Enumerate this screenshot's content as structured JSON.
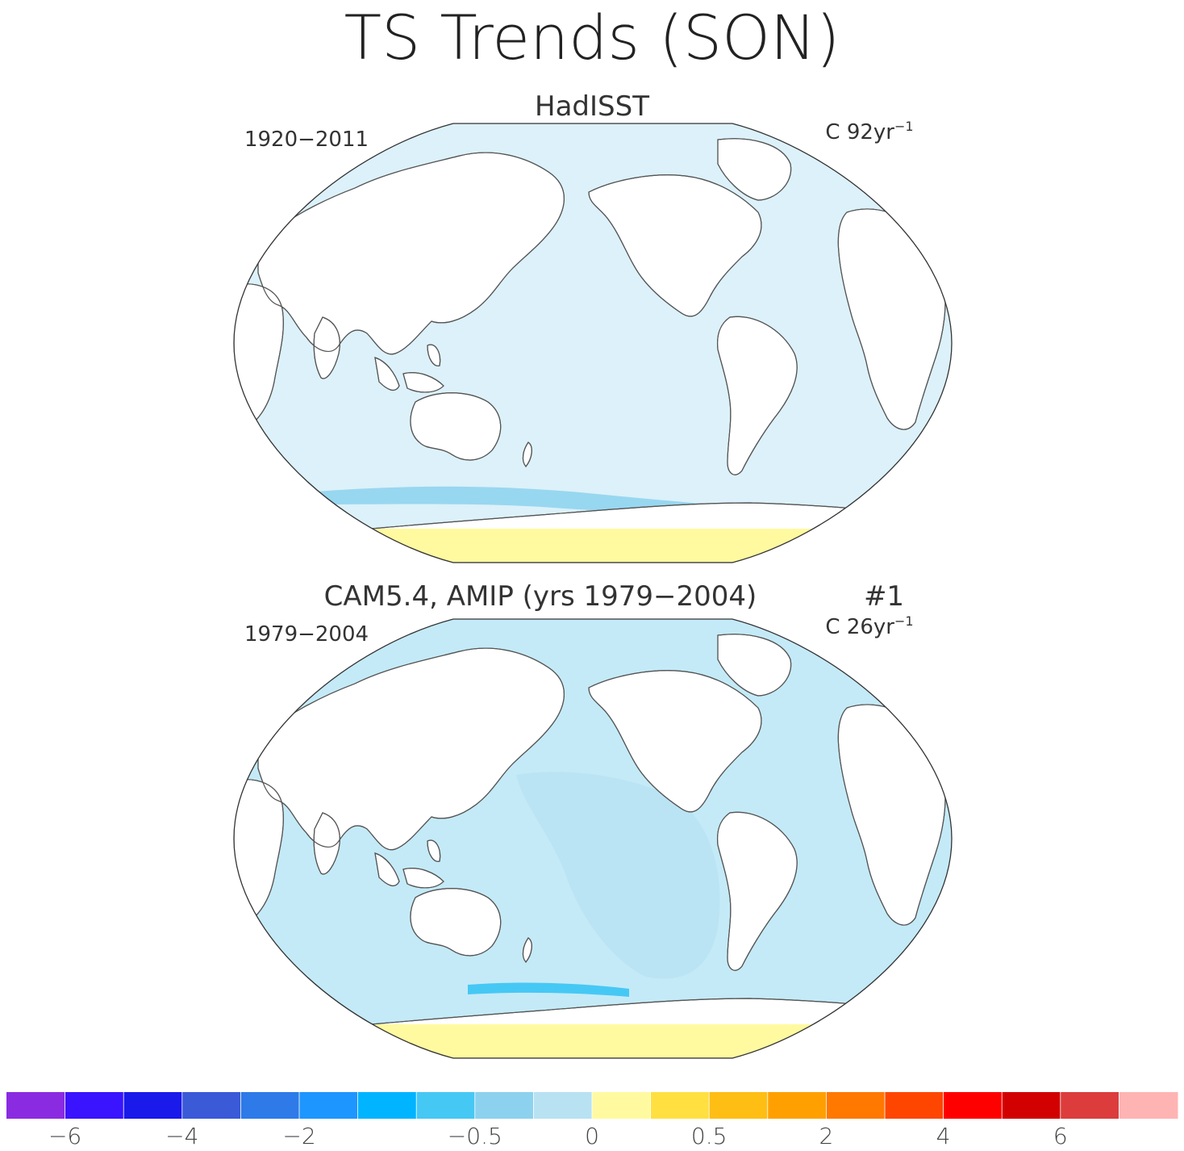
{
  "figure": {
    "title": "TS Trends (SON)"
  },
  "panels": [
    {
      "title": "HadISST",
      "period": "1920−2011",
      "units_prefix": "C 92yr",
      "units_exp": "−1",
      "pattern": "observed"
    },
    {
      "title": "CAM5.4, AMIP (yrs 1979−2004)",
      "member": "#1",
      "period": "1979−2004",
      "units_prefix": "C 26yr",
      "units_exp": "−1",
      "pattern": "model"
    }
  ],
  "colorbar": {
    "colors": [
      "#8a2be2",
      "#3a14ff",
      "#1a1aeb",
      "#3a5ad8",
      "#2d7ae8",
      "#1e96ff",
      "#00b4ff",
      "#46c8f5",
      "#8cd2ee",
      "#b8e2f2",
      "#fffaa0",
      "#ffe040",
      "#ffbe14",
      "#ffa000",
      "#ff7800",
      "#ff4600",
      "#ff0000",
      "#d20000",
      "#dc3c3c",
      "#ffb4b4"
    ],
    "tick_labels": [
      "−6",
      "−4",
      "−2",
      "−0.5",
      "0",
      "0.5",
      "2",
      "4",
      "6"
    ],
    "tick_boundaries": [
      1,
      3,
      5,
      8,
      10,
      12,
      14,
      16,
      18
    ]
  },
  "colors": {
    "land": "#ffffff",
    "coast": "#555555",
    "frame": "#333333"
  }
}
